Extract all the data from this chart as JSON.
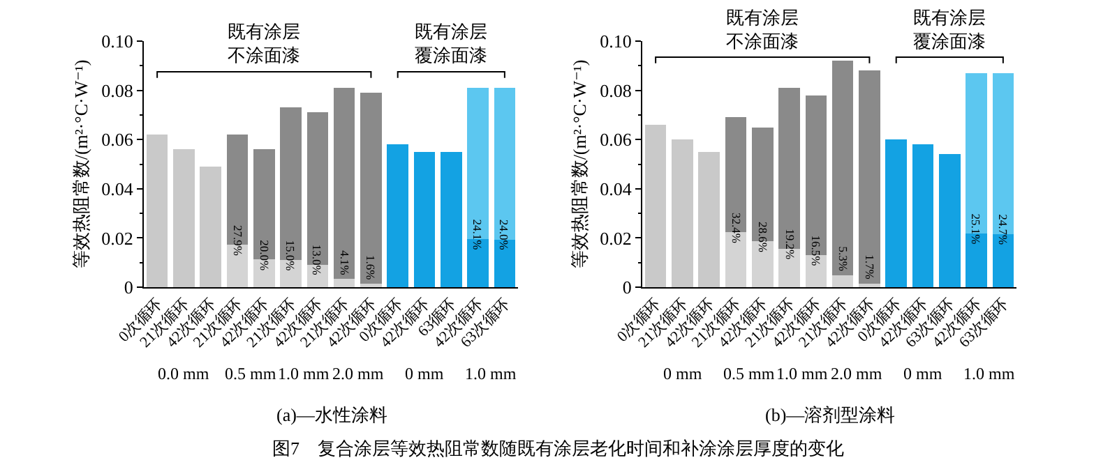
{
  "chart_data": [
    {
      "type": "bar",
      "title": "(a)—水性涂料",
      "ylabel": "等效热阻常数/(m²·°C·W⁻¹)",
      "stacked": true,
      "categories": [
        "0次循环",
        "21次循环",
        "42次循环",
        "21次循环",
        "42次循环",
        "21次循环",
        "42次循环",
        "21次循环",
        "42次循环",
        "0次循环",
        "42次循环",
        "63循环",
        "42次循环",
        "63次循环"
      ],
      "series": [
        {
          "colors": [
            "#c9c9c9",
            "#c9c9c9",
            "#c9c9c9",
            "#d4d4d4",
            "#d4d4d4",
            "#d4d4d4",
            "#d4d4d4",
            "#d4d4d4",
            "#d4d4d4",
            "#13a2e3",
            "#13a2e3",
            "#13a2e3",
            "#13a2e3",
            "#13a2e3"
          ],
          "values": [
            0.062,
            0.056,
            0.049,
            0.0173,
            0.0112,
            0.011,
            0.0092,
            0.0033,
            0.0013,
            0.058,
            0.055,
            0.055,
            0.0195,
            0.0194
          ]
        },
        {
          "colors": [
            "#8a8a8a",
            "#8a8a8a",
            "#8a8a8a",
            "#8a8a8a",
            "#8a8a8a",
            "#8a8a8a",
            "#8a8a8a",
            "#8a8a8a",
            "#8a8a8a",
            "#5cc7f0",
            "#5cc7f0",
            "#5cc7f0",
            "#5cc7f0",
            "#5cc7f0"
          ],
          "values": [
            null,
            null,
            null,
            0.0447,
            0.0448,
            0.062,
            0.0618,
            0.0777,
            0.0777,
            null,
            null,
            null,
            0.0615,
            0.0616
          ]
        }
      ],
      "ylim": [
        0,
        0.1
      ],
      "yticks": [
        0,
        {
          "value": 0.01,
          "label": null
        },
        0.02,
        {
          "value": 0.03,
          "label": null
        },
        0.04,
        {
          "value": 0.05,
          "label": null
        },
        0.06,
        {
          "value": 0.07,
          "label": null
        },
        0.08,
        {
          "value": 0.09,
          "label": null
        },
        {
          "value": 0.1,
          "label": "0.10"
        }
      ],
      "annotations": [
        "27.9%",
        "20.0%",
        "15.0%",
        "13.0%",
        "4.1%",
        "1.6%",
        "24.1%",
        "24.0%",
        "0.0 mm",
        "0.5 mm",
        "1.0 mm",
        "2.0 mm",
        "0 mm",
        "1.0 mm",
        "既有涂层不涂面漆",
        "既有涂层覆涂面漆",
        "图7　复合涂层等效热阻常数随既有涂层老化时间和补涂涂层厚度的变化"
      ]
    },
    {
      "type": "bar",
      "title": "(b)—溶剂型涂料",
      "ylabel": "等效热阻常数/(m²·°C·W⁻¹)",
      "stacked": true,
      "categories": [
        "0次循环",
        "21次循环",
        "42次循环",
        "21次循环",
        "42次循环",
        "21次循环",
        "42次循环",
        "21次循环",
        "42次循环",
        "0次循环",
        "42次循环",
        "63次循环",
        "42次循环",
        "63次循环"
      ],
      "series": [
        {
          "colors": [
            "#c9c9c9",
            "#c9c9c9",
            "#c9c9c9",
            "#d4d4d4",
            "#d4d4d4",
            "#d4d4d4",
            "#d4d4d4",
            "#d4d4d4",
            "#d4d4d4",
            "#13a2e3",
            "#13a2e3",
            "#13a2e3",
            "#13a2e3",
            "#13a2e3"
          ],
          "values": [
            0.066,
            0.06,
            0.055,
            0.0224,
            0.0186,
            0.0156,
            0.0129,
            0.0049,
            0.0015,
            0.06,
            0.058,
            0.054,
            0.0218,
            0.0215
          ]
        },
        {
          "colors": [
            "#8a8a8a",
            "#8a8a8a",
            "#8a8a8a",
            "#8a8a8a",
            "#8a8a8a",
            "#8a8a8a",
            "#8a8a8a",
            "#8a8a8a",
            "#8a8a8a",
            "#5cc7f0",
            "#5cc7f0",
            "#5cc7f0",
            "#5cc7f0",
            "#5cc7f0"
          ],
          "values": [
            null,
            null,
            null,
            0.0466,
            0.0464,
            0.0654,
            0.0651,
            0.0871,
            0.0865,
            null,
            null,
            null,
            0.0652,
            0.0655
          ]
        }
      ],
      "ylim": [
        0,
        0.1
      ],
      "yticks": [
        0,
        {
          "value": 0.01,
          "label": null
        },
        0.02,
        {
          "value": 0.03,
          "label": null
        },
        0.04,
        {
          "value": 0.05,
          "label": null
        },
        0.06,
        {
          "value": 0.07,
          "label": null
        },
        0.08,
        {
          "value": 0.09,
          "label": null
        },
        {
          "value": 0.1,
          "label": "0.10"
        }
      ],
      "annotations": [
        "32.4%",
        "28.6%",
        "19.2%",
        "16.5%",
        "5.3%",
        "1.7%",
        "25.1%",
        "24.7%",
        "0 mm",
        "0.5 mm",
        "1.0 mm",
        "2.0 mm",
        "0 mm",
        "1.0 mm",
        "既有涂层不涂面漆",
        "既有涂层覆涂面漆"
      ]
    }
  ]
}
